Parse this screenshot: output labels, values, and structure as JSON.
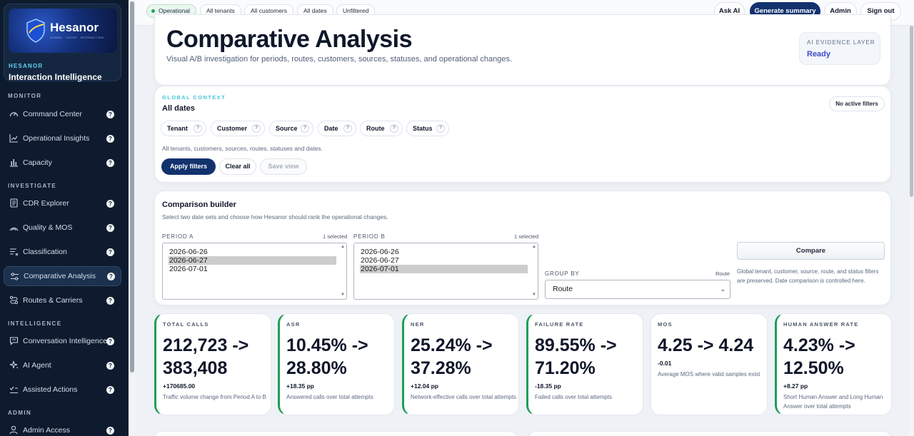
{
  "brand": {
    "logo_text": "Hesanor",
    "logo_tagline": "SIGNAL · VOICE · INTERACTION",
    "kicker": "HESANOR",
    "name": "Interaction Intelligence"
  },
  "sidebar": {
    "sections": [
      {
        "title": "MONITOR",
        "items": [
          {
            "label": "Command Center",
            "icon": "gauge-icon"
          },
          {
            "label": "Operational Insights",
            "icon": "trend-icon"
          },
          {
            "label": "Capacity",
            "icon": "bar-chart-icon"
          }
        ]
      },
      {
        "title": "INVESTIGATE",
        "items": [
          {
            "label": "CDR Explorer",
            "icon": "document-icon"
          },
          {
            "label": "Quality & MOS",
            "icon": "signal-icon"
          },
          {
            "label": "Classification",
            "icon": "filter-list-icon"
          },
          {
            "label": "Comparative Analysis",
            "icon": "sliders-icon",
            "active": true
          },
          {
            "label": "Routes & Carriers",
            "icon": "route-icon"
          }
        ]
      },
      {
        "title": "INTELLIGENCE",
        "items": [
          {
            "label": "Conversation Intelligence",
            "icon": "chat-icon"
          },
          {
            "label": "AI Agent",
            "icon": "sparkle-icon"
          },
          {
            "label": "Assisted Actions",
            "icon": "check-list-icon"
          }
        ]
      },
      {
        "title": "ADMIN",
        "items": [
          {
            "label": "Admin Access",
            "icon": "user-icon"
          }
        ]
      }
    ],
    "help_glyph": "?"
  },
  "topbar": {
    "status": "Operational",
    "chips": [
      "All tenants",
      "All customers",
      "All dates",
      "Unfiltered"
    ],
    "buttons": {
      "ask_ai": "Ask AI",
      "generate_summary": "Generate summary",
      "admin": "Admin",
      "sign_out": "Sign out"
    }
  },
  "hero": {
    "title": "Comparative Analysis",
    "subtitle": "Visual A/B investigation for periods, routes, customers, sources, statuses, and operational changes.",
    "evidence_kicker": "AI EVIDENCE LAYER",
    "evidence_status": "Ready"
  },
  "global_context": {
    "kicker": "GLOBAL CONTEXT",
    "title": "All dates",
    "no_filters": "No active filters",
    "filters": [
      "Tenant",
      "Customer",
      "Source",
      "Date",
      "Route",
      "Status"
    ],
    "help_glyph": "?",
    "summary": "All tenants, customers, sources, routes, statuses and dates.",
    "apply": "Apply filters",
    "clear": "Clear all",
    "save": "Save view"
  },
  "comparison": {
    "title": "Comparison builder",
    "subtitle": "Select two date sets and choose how Hesanor should rank the operational changes.",
    "period_a": {
      "label": "PERIOD A",
      "count": "1 selected",
      "options": [
        "2026-06-26",
        "2026-06-27",
        "2026-07-01"
      ],
      "selected": "2026-06-27"
    },
    "period_b": {
      "label": "PERIOD B",
      "count": "1 selected",
      "options": [
        "2026-06-26",
        "2026-06-27",
        "2026-07-01"
      ],
      "selected": "2026-07-01"
    },
    "group_by_label": "GROUP BY",
    "group_by_hint": "Route",
    "group_by_value": "Route",
    "compare_button": "Compare",
    "note": "Global tenant, customer, source, route, and status filters are preserved. Date comparison is controlled here."
  },
  "kpis": [
    {
      "title": "TOTAL CALLS",
      "value": "212,723 -> 383,408",
      "delta": "+170685.00",
      "desc": "Traffic volume change from Period A to B",
      "accent": "#1f9d55"
    },
    {
      "title": "ASR",
      "value": "10.45% -> 28.80%",
      "delta": "+18.35 pp",
      "desc": "Answered calls over total attempts",
      "accent": "#1f9d55"
    },
    {
      "title": "NER",
      "value": "25.24% -> 37.28%",
      "delta": "+12.04 pp",
      "desc": "Network-effective calls over total attempts",
      "accent": "#1f9d55"
    },
    {
      "title": "FAILURE RATE",
      "value": "89.55% -> 71.20%",
      "delta": "-18.35 pp",
      "desc": "Failed calls over total attempts",
      "accent": "#1f9d55"
    },
    {
      "title": "MOS",
      "value": "4.25 -> 4.24",
      "delta": "-0.01",
      "desc": "Average MOS where valid samples exist",
      "accent": "none"
    },
    {
      "title": "HUMAN ANSWER RATE",
      "value": "4.23% -> 12.50%",
      "delta": "+8.27 pp",
      "desc": "Short Human Answer and Long Human Answer over total attempts",
      "accent": "#1f9d55"
    }
  ]
}
